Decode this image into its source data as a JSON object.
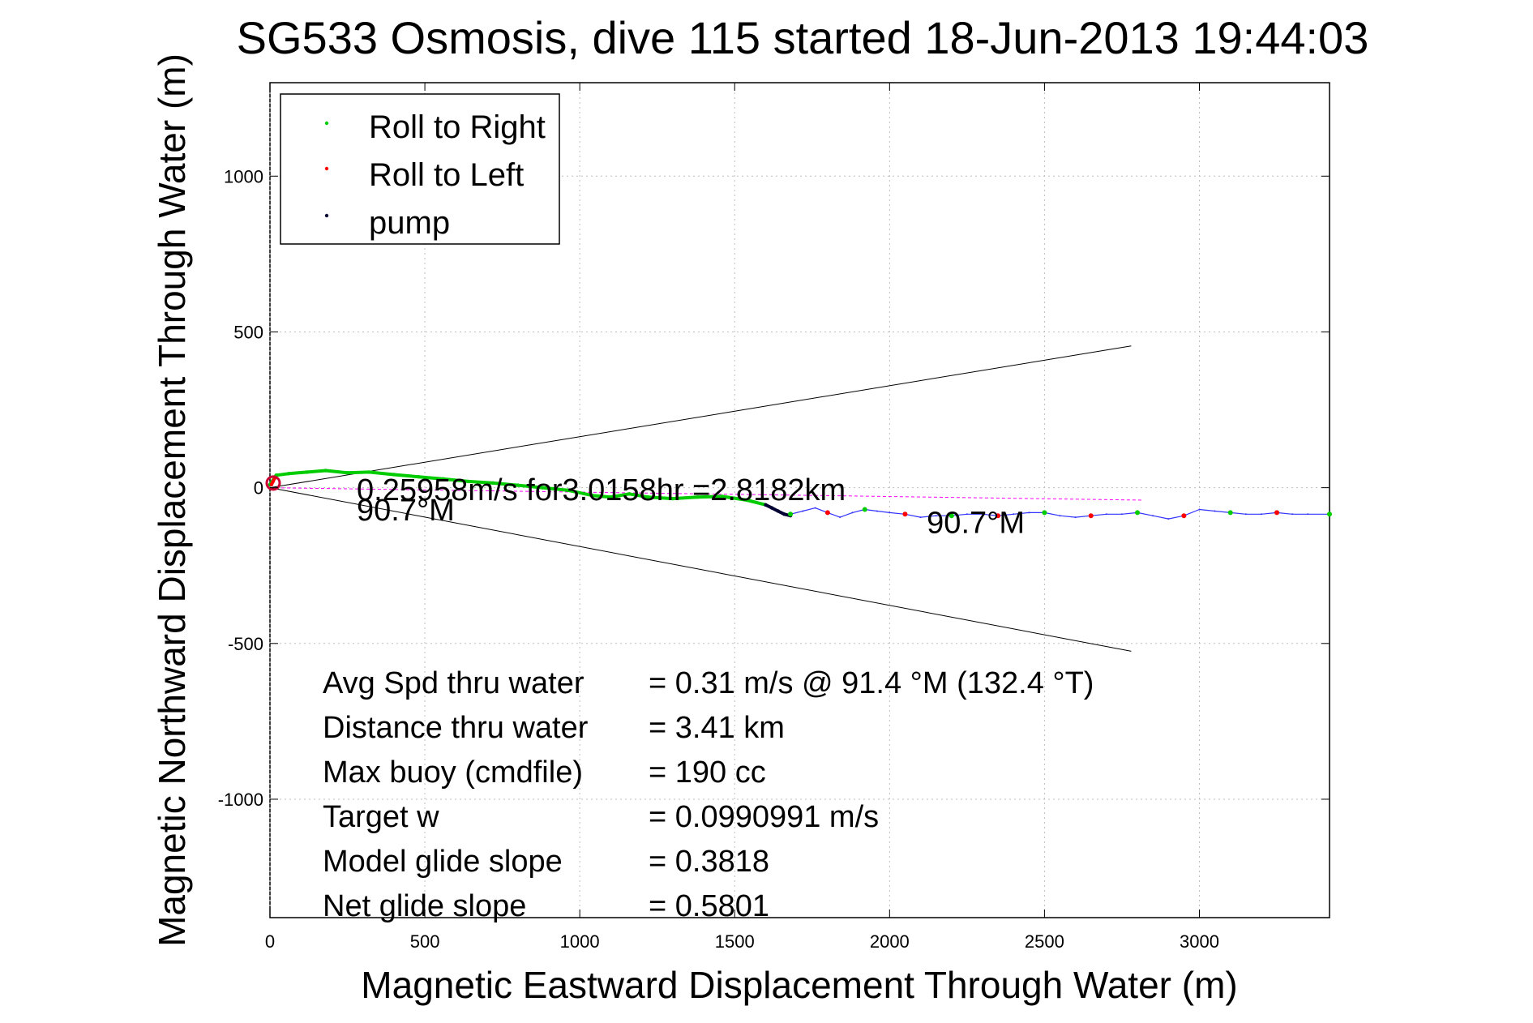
{
  "chart_data": {
    "type": "line",
    "title": "SG533 Osmosis, dive 115 started 18-Jun-2013 19:44:03",
    "xlabel": "Magnetic Eastward Displacement Through Water (m)",
    "ylabel": "Magnetic Northward Displacement Through Water (m)",
    "xlim": [
      0,
      3420
    ],
    "ylim": [
      -1380,
      1300
    ],
    "xticks": [
      0,
      500,
      1000,
      1500,
      2000,
      2500,
      3000
    ],
    "yticks": [
      -1000,
      -500,
      0,
      500,
      1000
    ],
    "xtick_labels": [
      "0",
      "500",
      "1000",
      "1500",
      "2000",
      "2500",
      "3000"
    ],
    "ytick_labels": [
      "-1000",
      "-500",
      "0",
      "500",
      "1000"
    ],
    "grid": true,
    "legend_position": "top-left",
    "legend": [
      {
        "label": "Roll to Right",
        "color": "#00cc00"
      },
      {
        "label": "Roll to Left",
        "color": "#ff0000"
      },
      {
        "label": "pump",
        "color": "#000033"
      }
    ],
    "series": [
      {
        "name": "Roll to Right",
        "color": "#00cc00",
        "x": [
          0,
          20,
          60,
          120,
          180,
          250,
          320,
          400,
          480,
          560,
          640,
          720,
          800,
          880,
          960,
          1040,
          1100,
          1160,
          1220,
          1300,
          1380,
          1460,
          1540,
          1600
        ],
        "y": [
          10,
          40,
          45,
          50,
          55,
          48,
          50,
          42,
          35,
          28,
          20,
          15,
          8,
          0,
          -8,
          -25,
          -30,
          -20,
          -30,
          -35,
          -30,
          -28,
          -40,
          -55
        ]
      },
      {
        "name": "Roll to Left",
        "color": "#ff0000",
        "x": [
          5,
          10,
          15
        ],
        "y": [
          10,
          20,
          30
        ]
      },
      {
        "name": "pump",
        "color": "#000033",
        "x": [
          1600,
          1620,
          1640,
          1660,
          1680
        ],
        "y": [
          -55,
          -65,
          -75,
          -85,
          -90
        ]
      },
      {
        "name": "track",
        "color": "#3333ff",
        "x": [
          1680,
          1720,
          1760,
          1800,
          1840,
          1880,
          1920,
          1960,
          2000,
          2050,
          2100,
          2150,
          2200,
          2250,
          2300,
          2350,
          2400,
          2450,
          2500,
          2550,
          2600,
          2650,
          2700,
          2750,
          2800,
          2850,
          2900,
          2950,
          3000,
          3050,
          3100,
          3150,
          3200,
          3250,
          3300,
          3350,
          3420
        ],
        "y": [
          -85,
          -75,
          -65,
          -80,
          -95,
          -80,
          -70,
          -75,
          -80,
          -85,
          -95,
          -90,
          -90,
          -85,
          -85,
          -90,
          -85,
          -80,
          -80,
          -90,
          -95,
          -90,
          -85,
          -85,
          -80,
          -90,
          -100,
          -90,
          -70,
          -75,
          -80,
          -85,
          -85,
          -80,
          -85,
          -85,
          -85
        ]
      }
    ],
    "reference_lines": [
      {
        "color": "#ff00ff",
        "x": [
          0,
          2820
        ],
        "y": [
          0,
          -40
        ],
        "dashed": true
      },
      {
        "color": "#000000",
        "x": [
          0,
          2780
        ],
        "y": [
          0,
          455
        ]
      },
      {
        "color": "#000000",
        "x": [
          0,
          2780
        ],
        "y": [
          0,
          -525
        ]
      }
    ],
    "annotations": [
      {
        "text": "0.25958m/s for3.0158hr =2.8182km",
        "x": 280,
        "y": -40
      },
      {
        "text": "90.7°M",
        "x": 280,
        "y": -105
      },
      {
        "text": "90.7°M",
        "x": 2120,
        "y": -145
      }
    ],
    "stats": [
      {
        "label": "Avg Spd thru water",
        "value": "=  0.31 m/s @  91.4 °M (132.4 °T)"
      },
      {
        "label": "Distance thru water",
        "value": "=  3.41 km"
      },
      {
        "label": "Max buoy (cmdfile)",
        "value": "= 190 cc"
      },
      {
        "label": "Target w",
        "value": "= 0.0990991 m/s"
      },
      {
        "label": "Model glide slope",
        "value": "= 0.3818"
      },
      {
        "label": "Net glide slope",
        "value": "= 0.5801"
      }
    ]
  }
}
